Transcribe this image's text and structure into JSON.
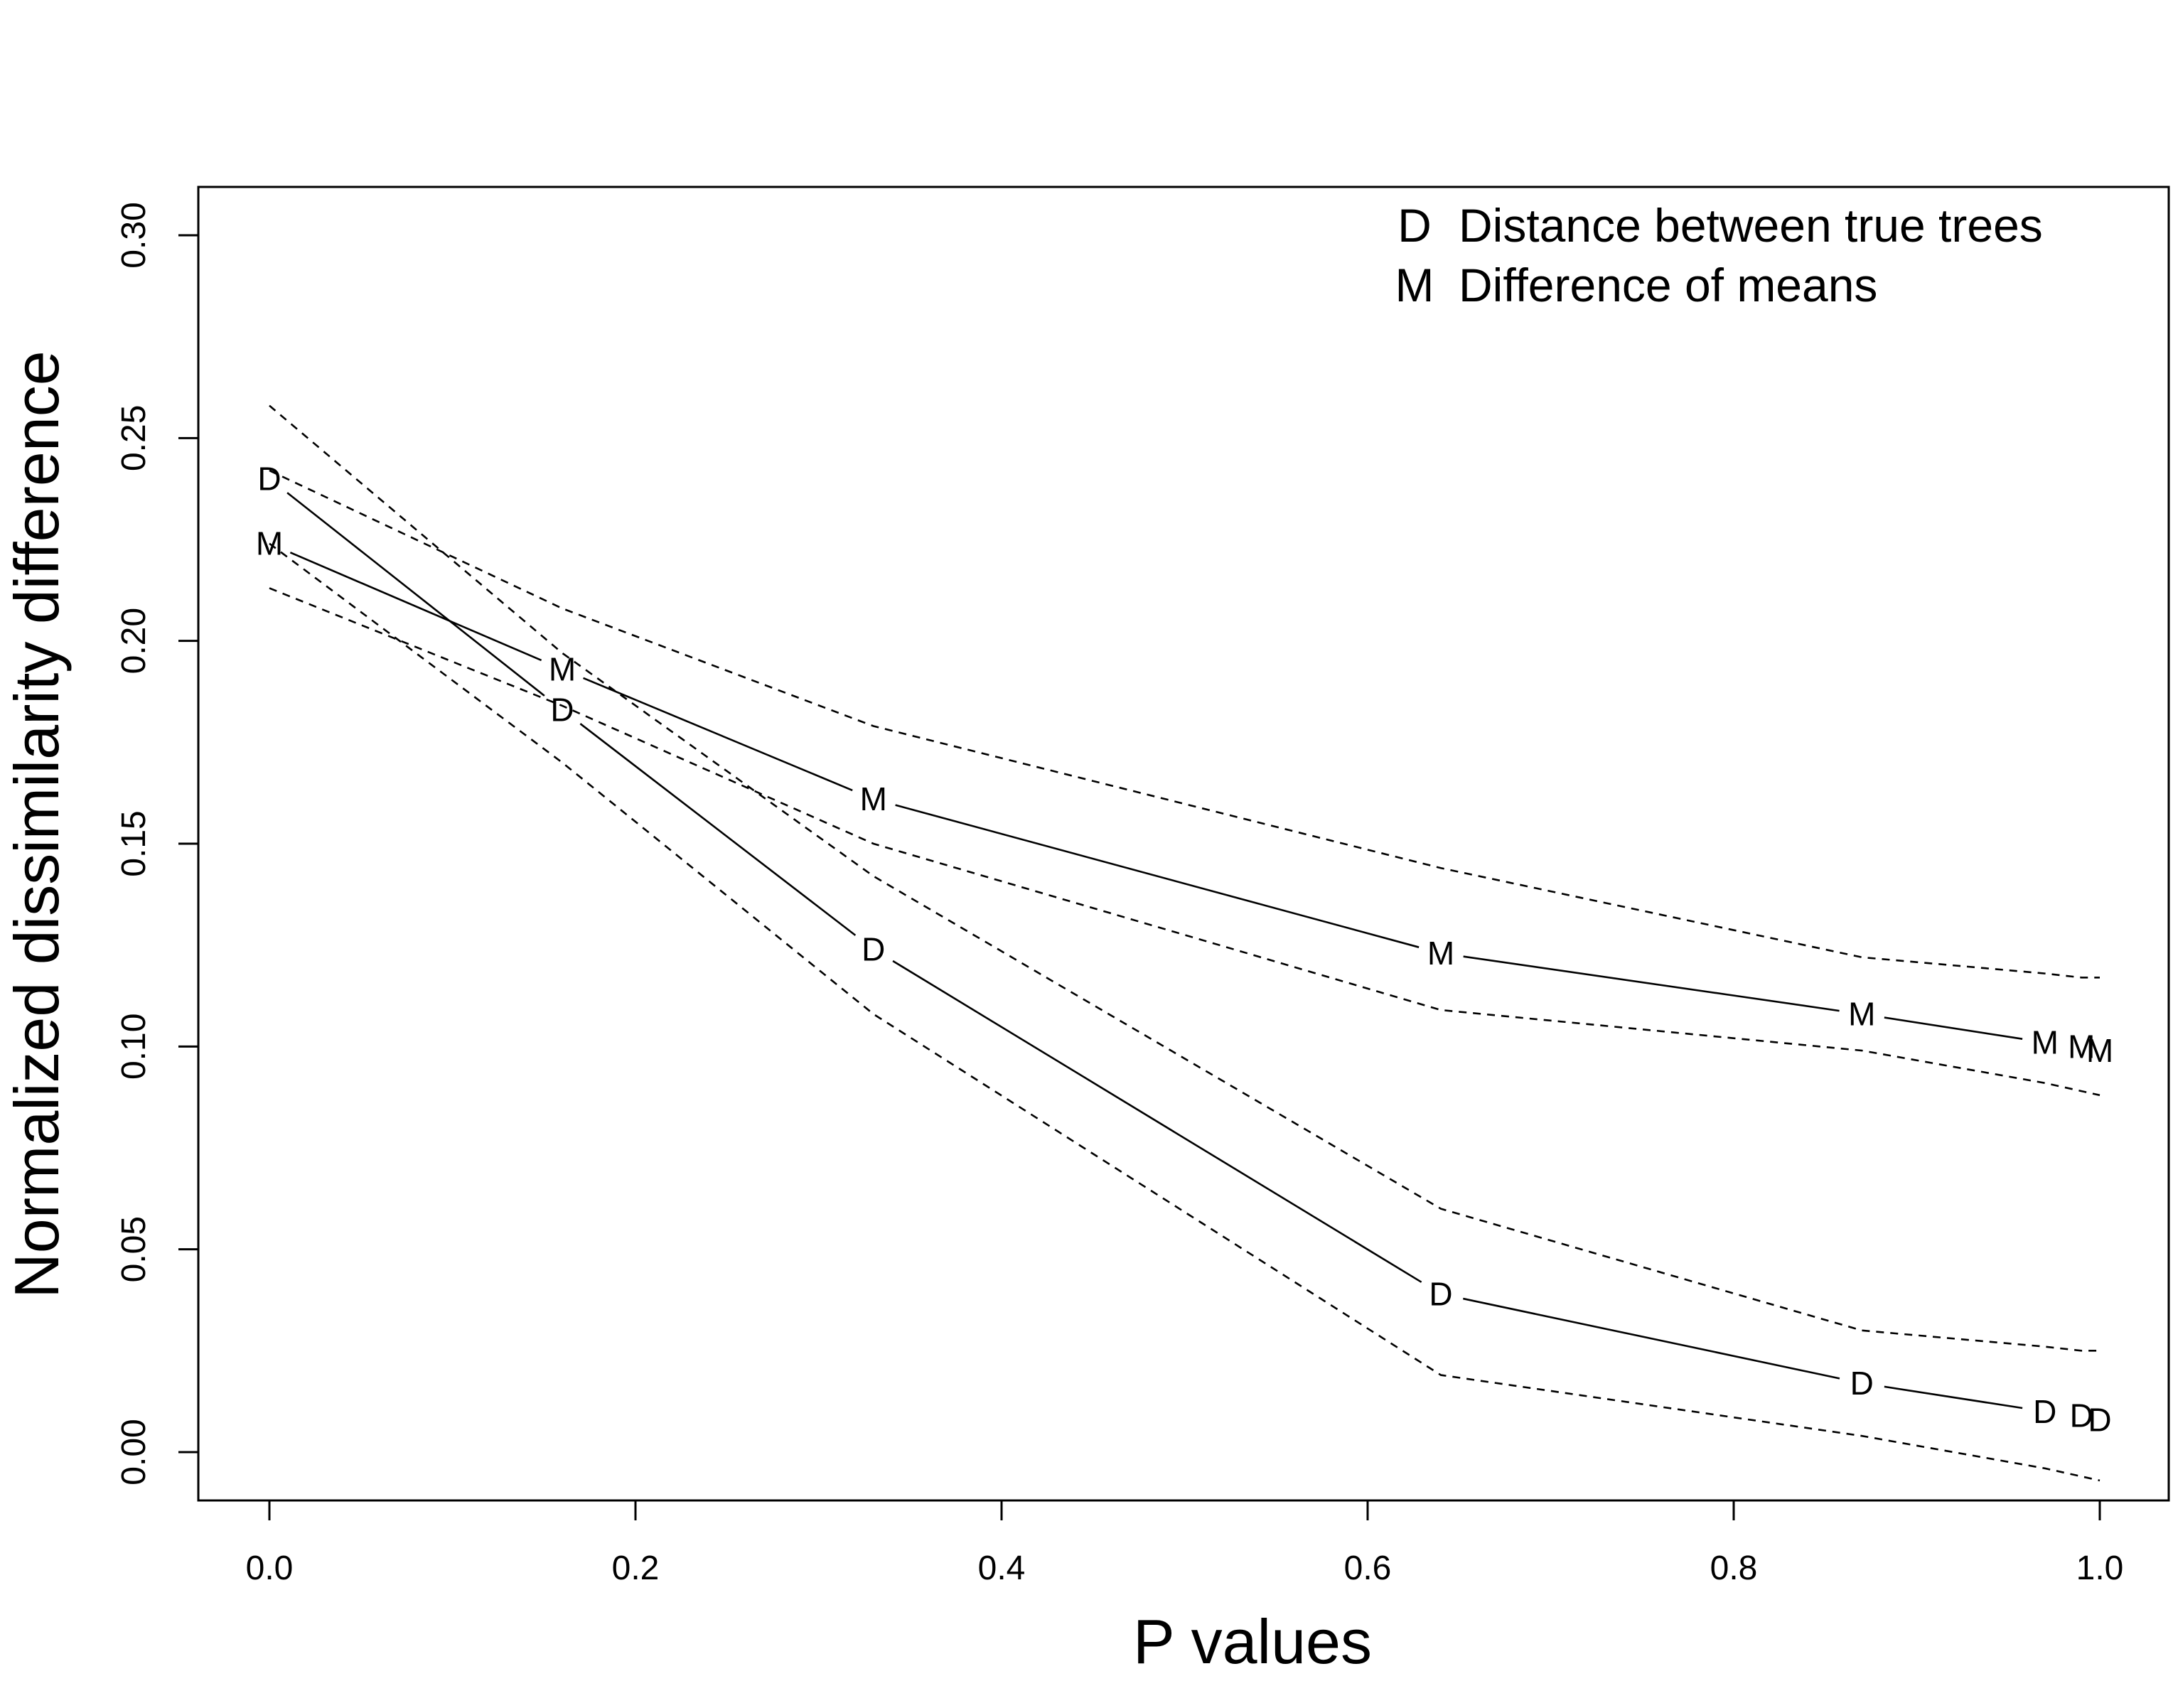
{
  "chart_data": {
    "type": "line",
    "title": "",
    "xlabel": "P values",
    "ylabel": "Normalized dissimilarity difference",
    "xlim": [
      -0.04,
      1.04
    ],
    "ylim": [
      -0.012,
      0.312
    ],
    "xticks": [
      0.0,
      0.2,
      0.4,
      0.6,
      0.8,
      1.0
    ],
    "xtick_labels": [
      "0.0",
      "0.2",
      "0.4",
      "0.6",
      "0.8",
      "1.0"
    ],
    "yticks": [
      0.0,
      0.05,
      0.1,
      0.15,
      0.2,
      0.25,
      0.3
    ],
    "ytick_labels": [
      "0.00",
      "0.05",
      "0.10",
      "0.15",
      "0.20",
      "0.25",
      "0.30"
    ],
    "x": [
      0.0,
      0.16,
      0.33,
      0.64,
      0.87,
      0.97,
      0.99,
      1.0
    ],
    "series": [
      {
        "name": "Distance between true trees",
        "symbol": "D",
        "values": [
          0.24,
          0.183,
          0.124,
          0.039,
          0.017,
          0.01,
          0.009,
          0.008
        ],
        "upper": [
          0.258,
          0.197,
          0.142,
          0.06,
          0.03,
          0.026,
          0.025,
          0.025
        ],
        "lower": [
          0.224,
          0.17,
          0.108,
          0.019,
          0.004,
          -0.004,
          -0.006,
          -0.007
        ]
      },
      {
        "name": "Difference of means",
        "symbol": "M",
        "values": [
          0.224,
          0.193,
          0.161,
          0.123,
          0.108,
          0.101,
          0.1,
          0.099
        ],
        "upper": [
          0.242,
          0.208,
          0.179,
          0.144,
          0.122,
          0.118,
          0.117,
          0.117
        ],
        "lower": [
          0.213,
          0.184,
          0.15,
          0.109,
          0.099,
          0.091,
          0.089,
          0.088
        ]
      }
    ],
    "legend": {
      "position": "top-right",
      "entries": [
        {
          "symbol": "D",
          "label": "Distance between true trees"
        },
        {
          "symbol": "M",
          "label": "Difference of means"
        }
      ]
    }
  }
}
